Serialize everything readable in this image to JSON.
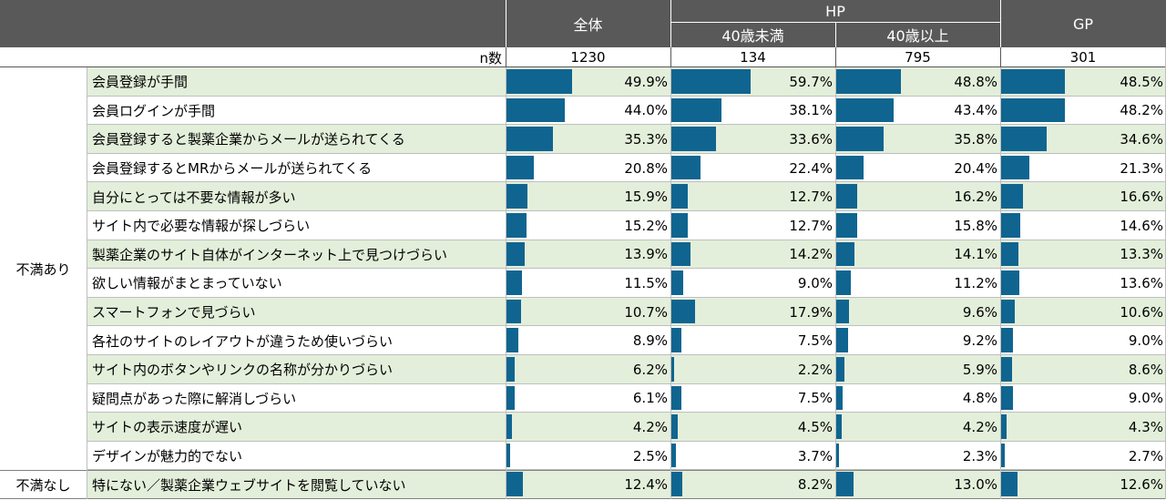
{
  "header": {
    "columns": [
      {
        "label": "全体"
      },
      {
        "label": "40歳未満"
      },
      {
        "label": "40歳以上"
      },
      {
        "label": "GP"
      }
    ],
    "hp_group_label": "HP",
    "n_label": "n数",
    "n_values": [
      "1230",
      "134",
      "795",
      "301"
    ]
  },
  "groups": [
    {
      "label": "不満あり",
      "rows": 14
    },
    {
      "label": "不満なし",
      "rows": 1
    }
  ],
  "colors": {
    "bar": "#0f6590",
    "header_bg": "#595959",
    "row_green": "#e3efda",
    "grid_line": "#bfbfbf"
  },
  "chart_data": {
    "type": "bar",
    "orientation": "horizontal",
    "value_unit": "%",
    "categories": [
      "会員登録が手間",
      "会員ログインが手間",
      "会員登録すると製薬企業からメールが送られてくる",
      "会員登録するとMRからメールが送られてくる",
      "自分にとっては不要な情報が多い",
      "サイト内で必要な情報が探しづらい",
      "製薬企業のサイト自体がインターネット上で見つけづらい",
      "欲しい情報がまとまっていない",
      "スマートフォンで見づらい",
      "各社のサイトのレイアウトが違うため使いづらい",
      "サイト内のボタンやリンクの名称が分かりづらい",
      "疑問点があった際に解消しづらい",
      "サイトの表示速度が遅い",
      "デザインが魅力的でない",
      "特にない／製薬企業ウェブサイトを閲覧していない"
    ],
    "series": [
      {
        "name": "全体",
        "values": [
          49.9,
          44.0,
          35.3,
          20.8,
          15.9,
          15.2,
          13.9,
          11.5,
          10.7,
          8.9,
          6.2,
          6.1,
          4.2,
          2.5,
          12.4
        ],
        "labels": [
          "49.9%",
          "44.0%",
          "35.3%",
          "20.8%",
          "15.9%",
          "15.2%",
          "13.9%",
          "11.5%",
          "10.7%",
          "8.9%",
          "6.2%",
          "6.1%",
          "4.2%",
          "2.5%",
          "12.4%"
        ]
      },
      {
        "name": "40歳未満",
        "values": [
          59.7,
          38.1,
          33.6,
          22.4,
          12.7,
          12.7,
          14.2,
          9.0,
          17.9,
          7.5,
          2.2,
          7.5,
          4.5,
          3.7,
          8.2
        ],
        "labels": [
          "59.7%",
          "38.1%",
          "33.6%",
          "22.4%",
          "12.7%",
          "12.7%",
          "14.2%",
          "9.0%",
          "17.9%",
          "7.5%",
          "2.2%",
          "7.5%",
          "4.5%",
          "3.7%",
          "8.2%"
        ]
      },
      {
        "name": "40歳以上",
        "values": [
          48.8,
          43.4,
          35.8,
          20.4,
          16.2,
          15.8,
          14.1,
          11.2,
          9.6,
          9.2,
          5.9,
          4.8,
          4.2,
          2.3,
          13.0
        ],
        "labels": [
          "48.8%",
          "43.4%",
          "35.8%",
          "20.4%",
          "16.2%",
          "15.8%",
          "14.1%",
          "11.2%",
          "9.6%",
          "9.2%",
          "5.9%",
          "4.8%",
          "4.2%",
          "2.3%",
          "13.0%"
        ]
      },
      {
        "name": "GP",
        "values": [
          48.5,
          48.2,
          34.6,
          21.3,
          16.6,
          14.6,
          13.3,
          13.6,
          10.6,
          9.0,
          8.6,
          9.0,
          4.3,
          2.7,
          12.6
        ],
        "labels": [
          "48.5%",
          "48.2%",
          "34.6%",
          "21.3%",
          "16.6%",
          "14.6%",
          "13.3%",
          "13.6%",
          "10.6%",
          "9.0%",
          "8.6%",
          "9.0%",
          "4.3%",
          "2.7%",
          "12.6%"
        ]
      }
    ]
  }
}
